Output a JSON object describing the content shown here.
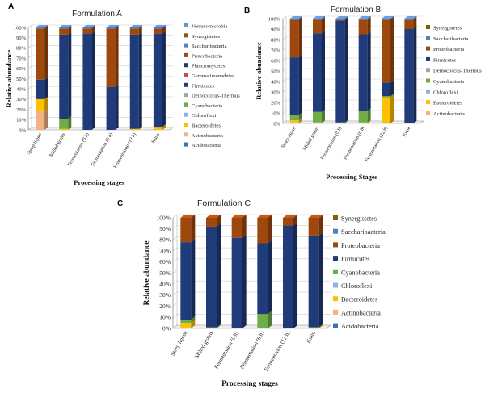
{
  "colors": {
    "Verrucomicrobia": "#5b9bd5",
    "Synergistetes": "#7f6000",
    "Saccharibacteria": "#4f81bd",
    "Proteobacteria": "#9e480e",
    "Planctomycetes": "#1f3864",
    "Gemmatimonadetes": "#c0504d",
    "Firmicutes": "#1f3b7a",
    "Deinococcus-Thermus": "#a5a5a5",
    "Cyanobacteria": "#70ad47",
    "Chloroflexi": "#8db3e2",
    "Bacteroidetes": "#ffc000",
    "Actinobacteria": "#f4b183",
    "Acidobacteria": "#2e75b6"
  },
  "chart_data": [
    {
      "type": "bar",
      "stacked": true,
      "panel_label": "A",
      "title": "Formulation A",
      "xlabel": "Processing stages",
      "ylabel": "Relative abundance",
      "ylim": [
        0,
        100
      ],
      "y_ticks": [
        "0%",
        "10%",
        "20%",
        "30%",
        "40%",
        "50%",
        "60%",
        "70%",
        "80%",
        "90%",
        "100%"
      ],
      "categories": [
        "Steep liquor",
        "Milled grains",
        "Fermentation (0 h)",
        "Fermentation (6 h)",
        "Fermentation (12 h)",
        "Kunu"
      ],
      "legend": [
        "Verrucomicrobia",
        "Synergistetes",
        "Saccharibacteria",
        "Proteobacteria",
        "Planctomycetes",
        "Gemmatimonadetes",
        "Firmicutes",
        "Deinococcus-Thermus",
        "Cyanobacteria",
        "Chloroflexi",
        "Bacteroidetes",
        "Actinobacteria",
        "Acidobacteria"
      ],
      "series": [
        {
          "name": "Actinobacteria",
          "values": [
            18,
            0,
            0,
            0,
            0,
            0
          ]
        },
        {
          "name": "Bacteroidetes",
          "values": [
            12,
            1,
            0,
            0,
            1,
            3
          ]
        },
        {
          "name": "Cyanobacteria",
          "values": [
            0,
            10,
            0,
            0,
            0,
            0
          ]
        },
        {
          "name": "Firmicutes",
          "values": [
            19,
            82,
            94,
            42,
            92,
            91
          ]
        },
        {
          "name": "Proteobacteria",
          "values": [
            50,
            6,
            5,
            57,
            6,
            5
          ]
        },
        {
          "name": "Saccharibacteria",
          "values": [
            1,
            1,
            1,
            1,
            1,
            1
          ]
        }
      ]
    },
    {
      "type": "bar",
      "stacked": true,
      "panel_label": "B",
      "title": "Formulation B",
      "xlabel": "Processing Stages",
      "ylabel": "Relative abundance",
      "ylim": [
        0,
        100
      ],
      "y_ticks": [
        "0%",
        "10%",
        "20%",
        "30%",
        "40%",
        "50%",
        "60%",
        "70%",
        "80%",
        "90%",
        "100%"
      ],
      "categories": [
        "Steep liquor",
        "Milled grains",
        "Fermentation (0 h)",
        "Fermentation (6 h)",
        "Fermentation (12 h)",
        "Kunu"
      ],
      "legend": [
        "Synergistetes",
        "Saccharibacteria",
        "Proteobacteria",
        "Firmicutes",
        "Deinococcus-Thermus",
        "Cyanobacteria",
        "Chloroflexi",
        "Bacteroidetes",
        "Actinobacteria"
      ],
      "series": [
        {
          "name": "Actinobacteria",
          "values": [
            1,
            0,
            0,
            0,
            0,
            0
          ]
        },
        {
          "name": "Bacteroidetes",
          "values": [
            2,
            1,
            0,
            1,
            25,
            0
          ]
        },
        {
          "name": "Cyanobacteria",
          "values": [
            5,
            10,
            1,
            11,
            1,
            0
          ]
        },
        {
          "name": "Firmicutes",
          "values": [
            55,
            75,
            97,
            73,
            13,
            90
          ]
        },
        {
          "name": "Proteobacteria",
          "values": [
            36,
            13,
            1,
            14,
            60,
            9
          ]
        },
        {
          "name": "Saccharibacteria",
          "values": [
            1,
            1,
            1,
            1,
            1,
            1
          ]
        }
      ]
    },
    {
      "type": "bar",
      "stacked": true,
      "panel_label": "C",
      "title": "Formulation C",
      "xlabel": "Processing stages",
      "ylabel": "Relative abundance",
      "ylim": [
        0,
        100
      ],
      "y_ticks": [
        "0%",
        "10%",
        "20%",
        "30%",
        "40%",
        "50%",
        "60%",
        "70%",
        "80%",
        "90%",
        "100%"
      ],
      "categories": [
        "Steep liquor",
        "Milled grains",
        "Fermentation (0 h)",
        "Fermentation (6 h)",
        "Fermentation (12 h)",
        "Kunu"
      ],
      "legend": [
        "Synergistetes",
        "Saccharibacteria",
        "Proteobacteria",
        "Firmicutes",
        "Cyanobacteria",
        "Chloroflexi",
        "Bacteroidetes",
        "Actinobacteria",
        "Acidobacteria"
      ],
      "series": [
        {
          "name": "Bacteroidetes",
          "values": [
            5,
            0,
            0,
            0,
            0,
            1
          ]
        },
        {
          "name": "Cyanobacteria",
          "values": [
            3,
            1,
            0,
            13,
            0,
            0
          ]
        },
        {
          "name": "Firmicutes",
          "values": [
            70,
            91,
            82,
            64,
            93,
            83
          ]
        },
        {
          "name": "Proteobacteria",
          "values": [
            22,
            8,
            18,
            23,
            7,
            16
          ]
        }
      ]
    }
  ]
}
